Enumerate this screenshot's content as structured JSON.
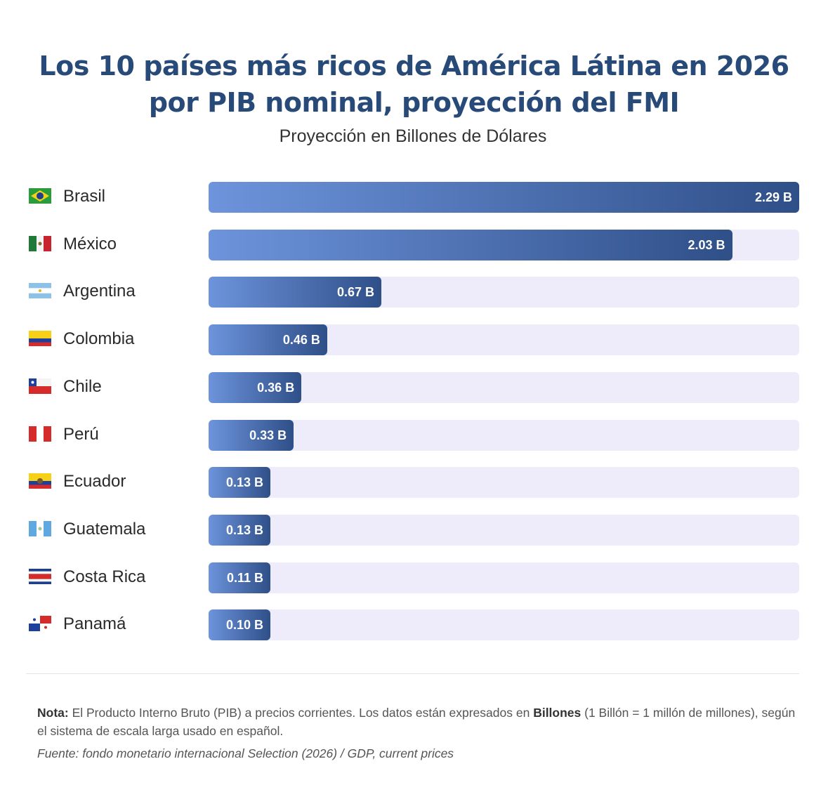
{
  "chart_data": {
    "type": "bar",
    "orientation": "horizontal",
    "title_lines": [
      "Los 10 países más ricos de América Látina en 2026",
      "por PIB nominal, proyección del FMI"
    ],
    "subtitle": "Proyección en Billones de Dólares",
    "xlim": [
      0,
      2.29
    ],
    "categories": [
      "Brasil",
      "México",
      "Argentina",
      "Colombia",
      "Chile",
      "Perú",
      "Ecuador",
      "Guatemala",
      "Costa Rica",
      "Panamá"
    ],
    "flags": [
      "brazil-flag-icon",
      "mexico-flag-icon",
      "argentina-flag-icon",
      "colombia-flag-icon",
      "chile-flag-icon",
      "peru-flag-icon",
      "ecuador-flag-icon",
      "guatemala-flag-icon",
      "costa-rica-flag-icon",
      "panama-flag-icon"
    ],
    "values": [
      2.29,
      2.03,
      0.67,
      0.46,
      0.36,
      0.33,
      0.13,
      0.13,
      0.11,
      0.1
    ],
    "labels": [
      "2.29 B",
      "2.03 B",
      "0.67 B",
      "0.46 B",
      "0.36 B",
      "0.33 B",
      "0.13 B",
      "0.13 B",
      "0.11 B",
      "0.10 B"
    ],
    "colors": {
      "bar_start": "#6d94dc",
      "bar_end": "#2f4f88",
      "track": "#eeecfa",
      "title": "#284a78"
    }
  },
  "footer": {
    "note_label": "Nota:",
    "note_text_1": " El Producto Interno Bruto (PIB) a precios corrientes. Los datos están expresados en ",
    "note_bold": "Billones",
    "note_text_2": " (1 Billón = 1 millón de millones), según el sistema de escala larga usado en español.",
    "source": "Fuente: fondo monetario internacional Selection (2026) / GDP, current prices"
  }
}
